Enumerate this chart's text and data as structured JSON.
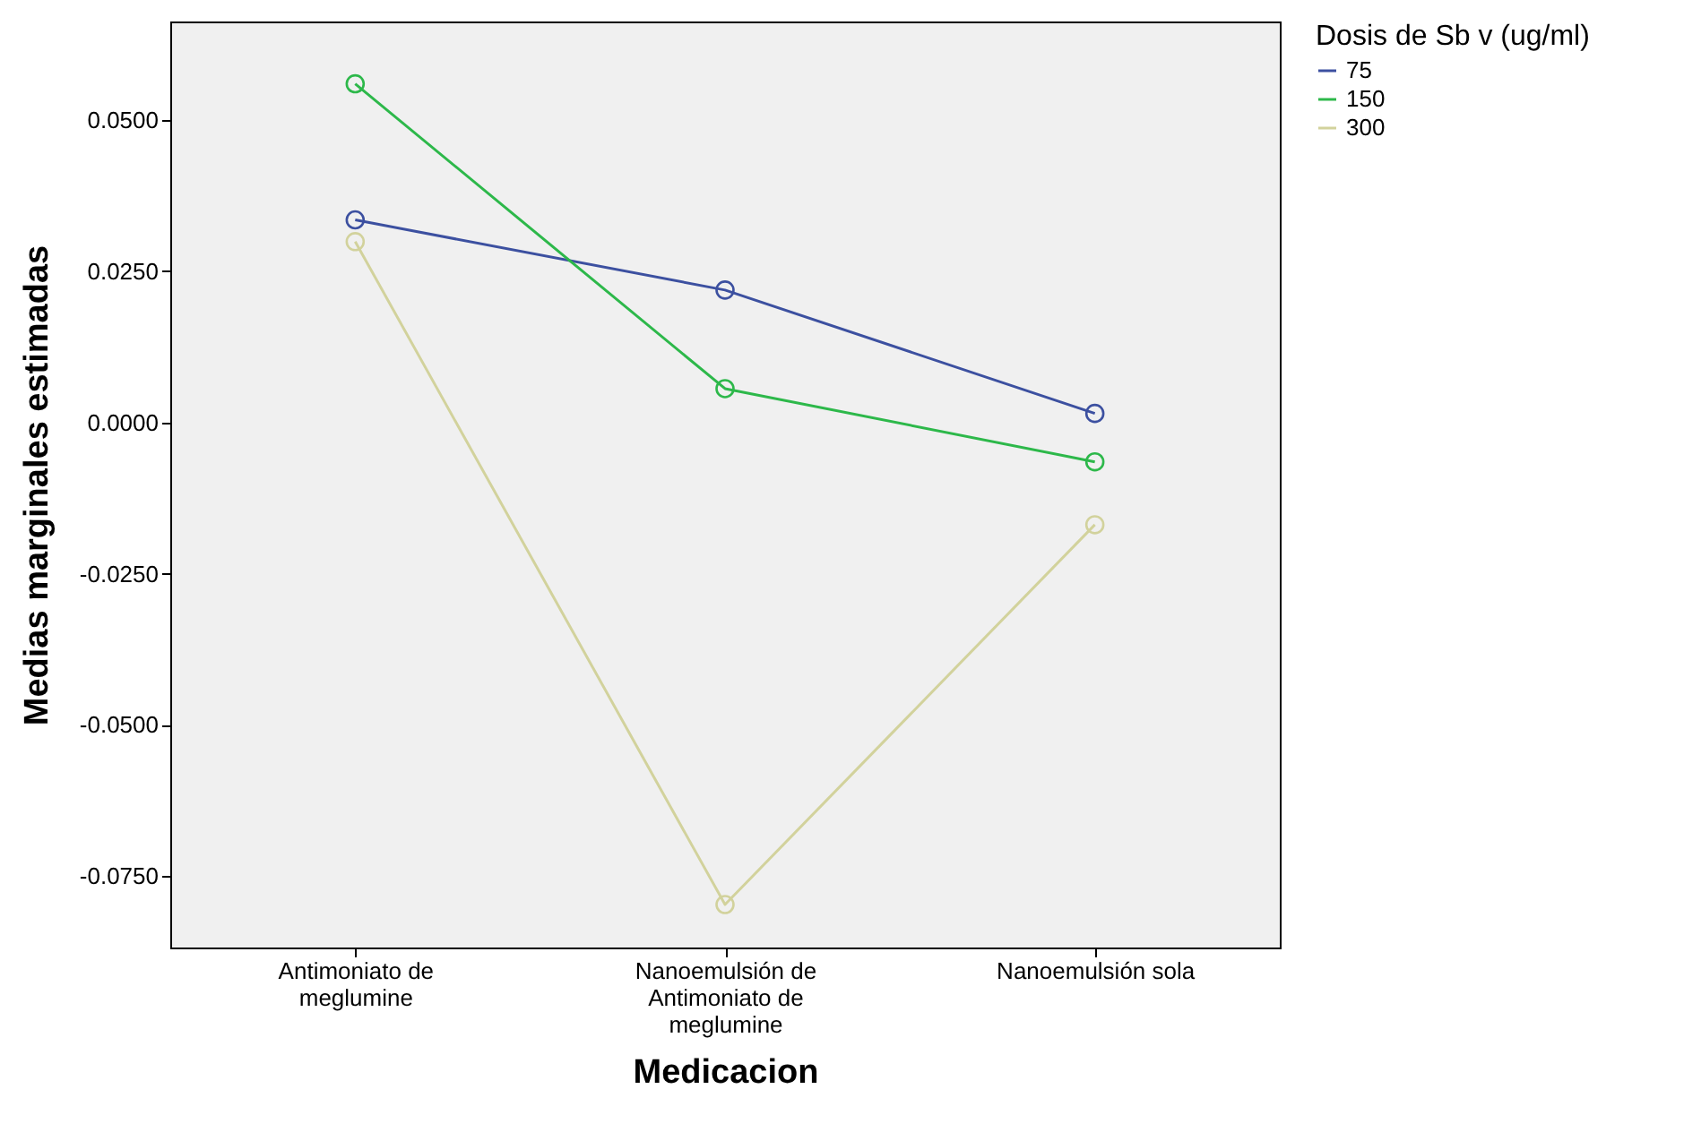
{
  "chart_data": {
    "type": "line",
    "xlabel": "Medicacion",
    "ylabel": "Medias marginales estimadas",
    "legend_title": "Dosis de Sb v (ug/ml)",
    "legend": "top right",
    "marker": "circle",
    "grid": false,
    "categories": [
      "Antimoniato de meglumine",
      "Nanoemulsión de Antimoniato de meglumine",
      "Nanoemulsión sola"
    ],
    "ylim": [
      -0.0868,
      0.0663
    ],
    "yticks": [
      {
        "value": -0.075,
        "label": "-0.0750"
      },
      {
        "value": -0.05,
        "label": "-0.0500"
      },
      {
        "value": -0.025,
        "label": "-0.0250"
      },
      {
        "value": 0,
        "label": "0.0000"
      },
      {
        "value": 0.025,
        "label": "0.0250"
      },
      {
        "value": 0.05,
        "label": "0.0500"
      }
    ],
    "series": [
      {
        "name": "75",
        "color": "#3c50a0",
        "values": [
          0.0335,
          0.0219,
          0.0015
        ]
      },
      {
        "name": "150",
        "color": "#2db84a",
        "values": [
          0.056,
          0.0056,
          -0.0065
        ]
      },
      {
        "name": "300",
        "color": "#d2d29c",
        "values": [
          0.0299,
          -0.0797,
          -0.0169
        ]
      }
    ]
  }
}
